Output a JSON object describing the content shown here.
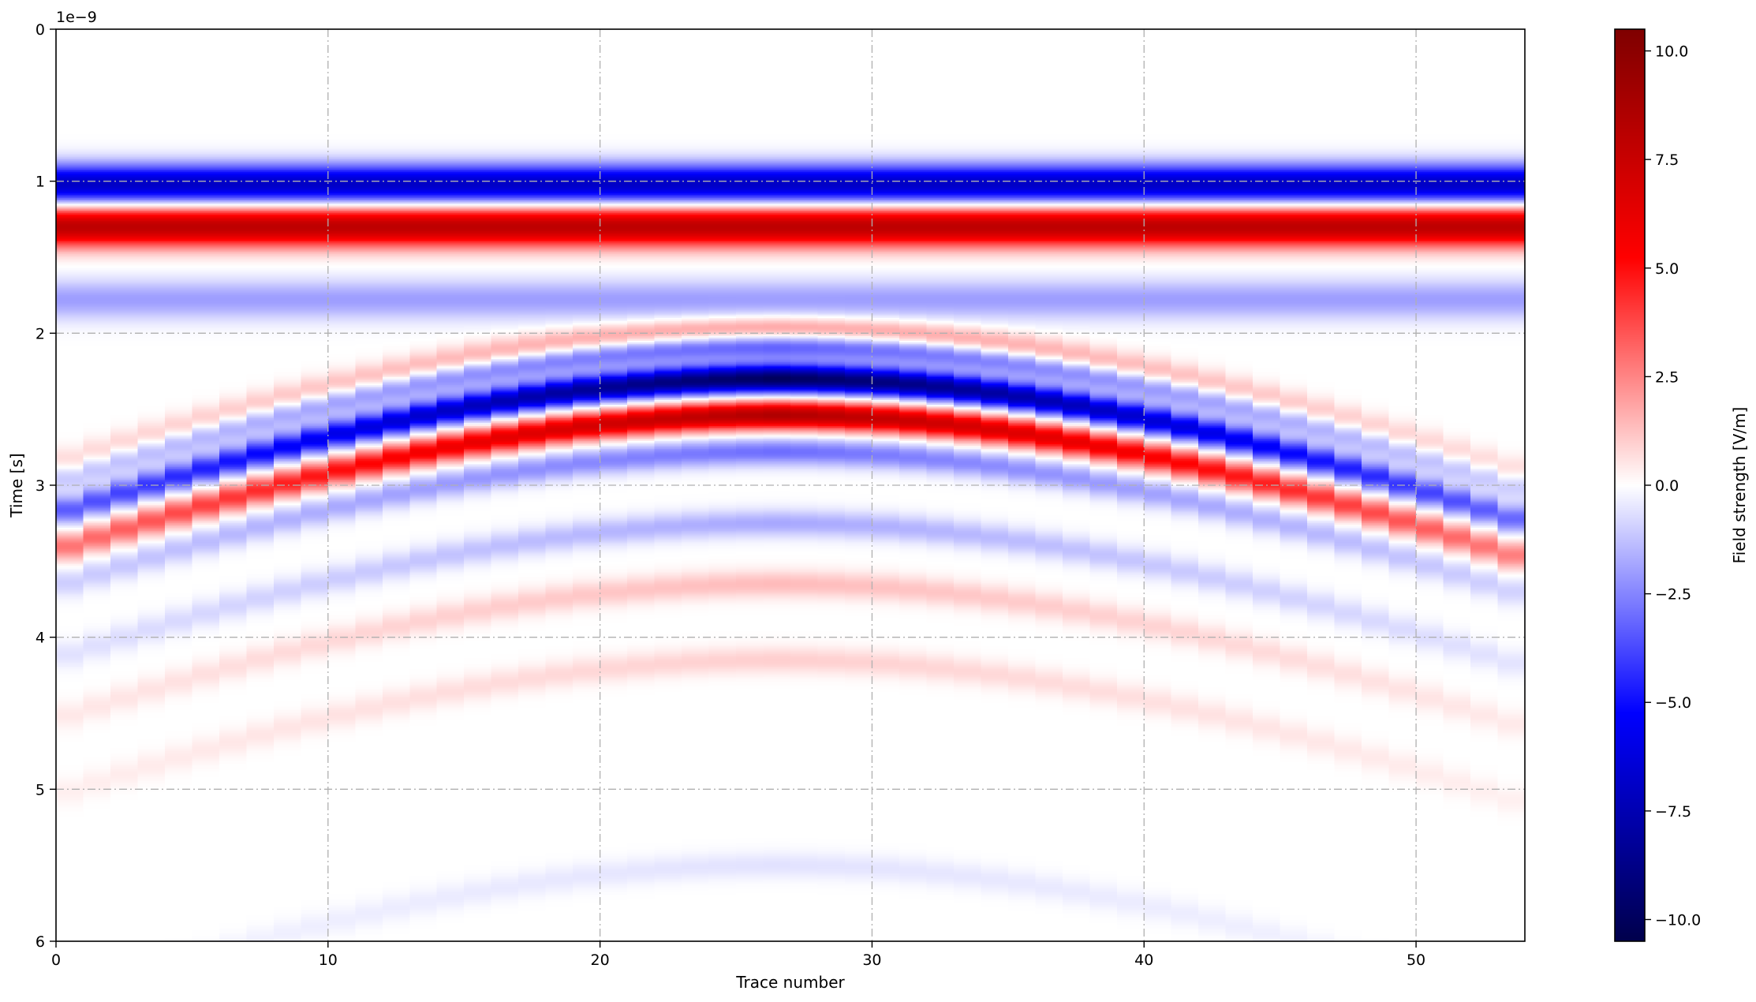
{
  "chart_data": {
    "type": "heatmap",
    "title": "",
    "xlabel": "Trace number",
    "ylabel": "Time [s]",
    "y_offset_label": "1e−9",
    "xlim": [
      0,
      54
    ],
    "ylim": [
      6,
      0
    ],
    "y_scale_factor": 1e-09,
    "x_ticks": [
      0,
      10,
      20,
      30,
      40,
      50
    ],
    "x_tick_labels": [
      "0",
      "10",
      "20",
      "30",
      "40",
      "50"
    ],
    "y_ticks": [
      0,
      1,
      2,
      3,
      4,
      5,
      6
    ],
    "y_tick_labels": [
      "0",
      "1",
      "2",
      "3",
      "4",
      "5",
      "6"
    ],
    "grid": true,
    "colormap": "seismic",
    "colormap_stops": [
      "#00004c",
      "#0000ff",
      "#ffffff",
      "#ff0000",
      "#7f0000"
    ],
    "colorbar": {
      "label": "Field strength [V/m]",
      "vmin": -10.5,
      "vmax": 10.5,
      "ticks": [
        10.0,
        7.5,
        5.0,
        2.5,
        0.0,
        -2.5,
        -5.0,
        -7.5,
        -10.0
      ],
      "tick_labels": [
        "10.0",
        "7.5",
        "5.0",
        "2.5",
        "0.0",
        "−2.5",
        "−5.0",
        "−7.5",
        "−10.0"
      ]
    },
    "n_traces": 54,
    "direct_wave": [
      {
        "time": 1.02,
        "amplitude": -7.0
      },
      {
        "time": 1.3,
        "amplitude": 8.0
      },
      {
        "time": 1.78,
        "amplitude": -2.0
      }
    ],
    "hyperbola_reflection": {
      "apex_trace": 26.5,
      "apex_time": 2.3,
      "edge_time_at_trace_0": 3.25,
      "peak_amplitude": -10.0,
      "edge_amplitude": -3.0
    }
  }
}
